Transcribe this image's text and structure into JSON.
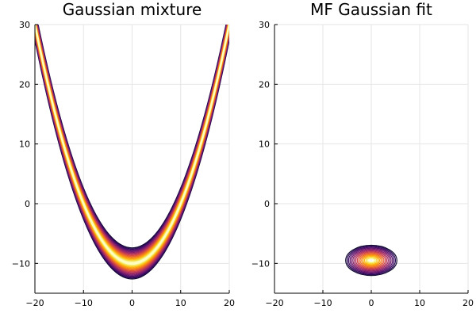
{
  "chart_data": [
    {
      "type": "contour",
      "title": "Gaussian mixture",
      "xlim": [
        -20,
        20
      ],
      "ylim": [
        -15,
        30
      ],
      "xticks": [
        -20,
        -10,
        0,
        10,
        20
      ],
      "yticks": [
        -10,
        0,
        10,
        20,
        30
      ],
      "xtick_labels": [
        "−20",
        "−10",
        "0",
        "10",
        "20"
      ],
      "ytick_labels": [
        "−10",
        "0",
        "10",
        "20",
        "30"
      ],
      "grid": true,
      "colormap": "inferno",
      "shape": "parabolic banana: center curve y = 0.1*x^2 - 10 with narrow band"
    },
    {
      "type": "contour",
      "title": "MF Gaussian fit",
      "xlim": [
        -20,
        20
      ],
      "ylim": [
        -15,
        30
      ],
      "xticks": [
        -20,
        -10,
        0,
        10,
        20
      ],
      "yticks": [
        -10,
        0,
        10,
        20,
        30
      ],
      "xtick_labels": [
        "−20",
        "−10",
        "0",
        "10",
        "20"
      ],
      "ytick_labels": [
        "−10",
        "0",
        "10",
        "20",
        "30"
      ],
      "grid": true,
      "colormap": "inferno",
      "center": [
        0,
        -9.5
      ],
      "sigma": [
        2.3,
        1.1
      ]
    }
  ]
}
